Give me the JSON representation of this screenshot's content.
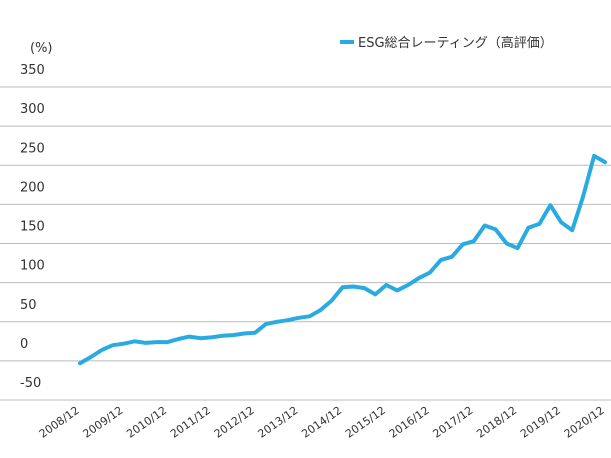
{
  "chart_data": {
    "type": "line",
    "y_axis_label": "(%)",
    "categories": [
      "2008/12",
      null,
      null,
      null,
      "2009/12",
      null,
      null,
      null,
      "2010/12",
      null,
      null,
      null,
      "2011/12",
      null,
      null,
      null,
      "2012/12",
      null,
      null,
      null,
      "2013/12",
      null,
      null,
      null,
      "2014/12",
      null,
      null,
      null,
      "2015/12",
      null,
      null,
      null,
      "2016/12",
      null,
      null,
      null,
      "2017/12",
      null,
      null,
      null,
      "2018/12",
      null,
      null,
      null,
      "2019/12",
      null,
      null,
      null,
      "2020/12"
    ],
    "series": [
      {
        "name": "ESG総合レーティング（高評価）",
        "color": "#29abe2",
        "values": [
          -3,
          5,
          14,
          20,
          22,
          25,
          23,
          24,
          24,
          28,
          31,
          29,
          30,
          32,
          33,
          35,
          36,
          47,
          50,
          52,
          55,
          57,
          65,
          77,
          94,
          95,
          93,
          85,
          97,
          90,
          97,
          106,
          113,
          129,
          133,
          149,
          153,
          173,
          168,
          150,
          144,
          170,
          175,
          199,
          177,
          167,
          210,
          262,
          254
        ]
      }
    ],
    "ylim": [
      -50,
      350
    ],
    "yticks": [
      -50,
      0,
      50,
      100,
      150,
      200,
      250,
      300,
      350
    ],
    "grid": true,
    "legend": "top-right"
  }
}
